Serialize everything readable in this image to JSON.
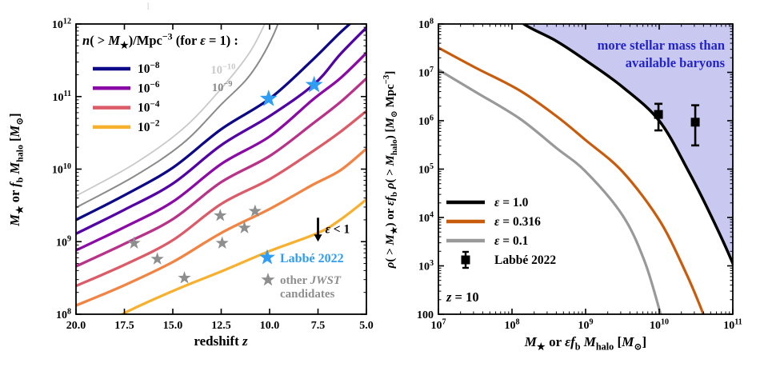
{
  "artifact": {
    "text": "I"
  },
  "chart_data": [
    {
      "type": "line",
      "id": "halo-mass-vs-redshift",
      "xlabel_rich": [
        {
          "t": "redshift "
        },
        {
          "t": "z",
          "i": 1
        }
      ],
      "ylabel_rich": [
        {
          "t": "M",
          "i": 1
        },
        {
          "t": "★",
          "s": "sub"
        },
        {
          "t": " or "
        },
        {
          "t": "f",
          "i": 1
        },
        {
          "t": "b",
          "s": "sub"
        },
        {
          "t": " "
        },
        {
          "t": "M",
          "i": 1
        },
        {
          "t": "halo",
          "s": "sub"
        },
        {
          "t": " ["
        },
        {
          "t": "M",
          "i": 1
        },
        {
          "t": "⊙",
          "s": "sub"
        },
        {
          "t": "]"
        }
      ],
      "xlim": [
        20,
        5
      ],
      "ylog_lim": [
        8,
        12
      ],
      "x_ticks": [
        {
          "v": 20,
          "label": "20.0"
        },
        {
          "v": 17.5,
          "label": "17.5"
        },
        {
          "v": 15,
          "label": "15.0"
        },
        {
          "v": 12.5,
          "label": "12.5"
        },
        {
          "v": 10,
          "label": "10.0"
        },
        {
          "v": 7.5,
          "label": "7.5"
        },
        {
          "v": 5,
          "label": "5.0"
        }
      ],
      "y_ticks_exp": [
        12,
        11,
        10,
        9,
        8
      ],
      "legend": {
        "title_rich": [
          {
            "t": "n",
            "i": 1
          },
          {
            "t": "( > "
          },
          {
            "t": "M",
            "i": 1
          },
          {
            "t": "★",
            "s": "sub"
          },
          {
            "t": ")/Mpc"
          },
          {
            "t": "−3",
            "s": "sup"
          },
          {
            "t": " (for "
          },
          {
            "t": "ε",
            "i": 1
          },
          {
            "t": " = 1) :"
          }
        ],
        "items": [
          {
            "exp": "−8",
            "color": "#0d0887"
          },
          {
            "exp": "−6",
            "color": "#8b0aa5"
          },
          {
            "exp": "−4",
            "color": "#db5c68"
          },
          {
            "exp": "−2",
            "color": "#f8b02f"
          }
        ]
      },
      "inplot_labels": [
        {
          "exp": "−10",
          "color": "#c9c9c9",
          "z": 12.4,
          "logM": 11.37
        },
        {
          "exp": "−9",
          "color": "#8a8a8a",
          "z": 12.45,
          "logM": 11.13
        }
      ],
      "series": [
        {
          "n": "1e-10",
          "color": "#c9c9c9",
          "width": 1.8,
          "points": [
            [
              20,
              9.63
            ],
            [
              17,
              10.07
            ],
            [
              14.5,
              10.55
            ],
            [
              12.5,
              11.11
            ],
            [
              11,
              11.62
            ],
            [
              10,
              12.15
            ],
            [
              9.6,
              12.45
            ]
          ]
        },
        {
          "n": "1e-9",
          "color": "#8a8a8a",
          "width": 2.0,
          "points": [
            [
              20,
              9.47
            ],
            [
              17,
              9.9
            ],
            [
              14.5,
              10.35
            ],
            [
              12.5,
              10.89
            ],
            [
              11,
              11.3
            ],
            [
              9.8,
              11.85
            ],
            [
              9.0,
              12.45
            ]
          ]
        },
        {
          "n": "1e-8",
          "color": "#0d0887",
          "width": 3.3,
          "points": [
            [
              20,
              9.3
            ],
            [
              17.5,
              9.64
            ],
            [
              15,
              10.02
            ],
            [
              12.5,
              10.55
            ],
            [
              10,
              10.97
            ],
            [
              7.8,
              11.5
            ],
            [
              6.36,
              11.88
            ],
            [
              5,
              12.2
            ]
          ]
        },
        {
          "n": "1e-7",
          "color": "#5302a3",
          "width": 3.3,
          "points": [
            [
              20,
              9.11
            ],
            [
              17.5,
              9.44
            ],
            [
              15,
              9.8
            ],
            [
              12.5,
              10.33
            ],
            [
              10,
              10.73
            ],
            [
              7.7,
              11.17
            ],
            [
              6.36,
              11.58
            ],
            [
              5,
              11.95
            ]
          ]
        },
        {
          "n": "1e-6",
          "color": "#8b0aa5",
          "width": 3.3,
          "points": [
            [
              20,
              8.88
            ],
            [
              17.5,
              9.2
            ],
            [
              15,
              9.55
            ],
            [
              12.5,
              10.07
            ],
            [
              10,
              10.45
            ],
            [
              7.8,
              10.95
            ],
            [
              6.36,
              11.25
            ],
            [
              5,
              11.6
            ]
          ]
        },
        {
          "n": "1e-5",
          "color": "#b83289",
          "width": 3.3,
          "points": [
            [
              20,
              8.66
            ],
            [
              17.5,
              8.97
            ],
            [
              15,
              9.31
            ],
            [
              12.5,
              9.82
            ],
            [
              10,
              10.18
            ],
            [
              7.8,
              10.62
            ],
            [
              6.36,
              10.92
            ],
            [
              5,
              11.25
            ]
          ]
        },
        {
          "n": "1e-4",
          "color": "#db5c68",
          "width": 3.3,
          "points": [
            [
              20,
              8.39
            ],
            [
              17.5,
              8.68
            ],
            [
              15,
              9.02
            ],
            [
              12.5,
              9.52
            ],
            [
              10,
              9.86
            ],
            [
              7.8,
              10.24
            ],
            [
              6.36,
              10.51
            ],
            [
              5,
              10.8
            ]
          ]
        },
        {
          "n": "1e-3",
          "color": "#f28443",
          "width": 3.3,
          "points": [
            [
              20,
              8.12
            ],
            [
              17.5,
              8.4
            ],
            [
              15,
              8.72
            ],
            [
              12.5,
              9.12
            ],
            [
              10,
              9.45
            ],
            [
              7.8,
              9.78
            ],
            [
              6.36,
              9.98
            ],
            [
              5,
              10.28
            ]
          ]
        },
        {
          "n": "1e-2",
          "color": "#f8b02f",
          "width": 3.3,
          "points": [
            [
              18.3,
              7.82
            ],
            [
              17.6,
              8.0
            ],
            [
              15,
              8.32
            ],
            [
              12.5,
              8.59
            ],
            [
              10,
              8.87
            ],
            [
              7.5,
              9.12
            ],
            [
              6.36,
              9.3
            ],
            [
              5,
              9.58
            ]
          ]
        }
      ],
      "stars_labbe": {
        "label": "Labbé 2022",
        "color": "#2e9df3",
        "points": [
          [
            10.05,
            10.97
          ],
          [
            7.7,
            11.16
          ]
        ]
      },
      "stars_other": {
        "label_line1_rich": [
          {
            "t": "other "
          },
          {
            "t": "JWST",
            "i": 1
          }
        ],
        "label_line2": "candidates",
        "color": "#8e8e8e",
        "points": [
          [
            17.0,
            8.98
          ],
          [
            15.8,
            8.76
          ],
          [
            14.4,
            8.5
          ],
          [
            12.55,
            9.36
          ],
          [
            12.45,
            8.98
          ],
          [
            11.3,
            9.19
          ],
          [
            10.75,
            9.42
          ]
        ]
      },
      "annotation": {
        "text_rich": [
          {
            "t": "ε",
            "i": 1
          },
          {
            "t": " < 1"
          }
        ],
        "z": 7.5,
        "logM_tail": 9.33,
        "logM_head": 9.0
      }
    },
    {
      "type": "line",
      "id": "density-vs-mass",
      "xlabel_rich": [
        {
          "t": "M",
          "i": 1
        },
        {
          "t": "★",
          "s": "sub"
        },
        {
          "t": " or "
        },
        {
          "t": "ε",
          "i": 1
        },
        {
          "t": "f",
          "i": 1
        },
        {
          "t": "b",
          "s": "sub"
        },
        {
          "t": " "
        },
        {
          "t": "M",
          "i": 1
        },
        {
          "t": "halo",
          "s": "sub"
        },
        {
          "t": " ["
        },
        {
          "t": "M",
          "i": 1
        },
        {
          "t": "⊙",
          "s": "sub"
        },
        {
          "t": "]"
        }
      ],
      "ylabel_rich": [
        {
          "t": "ρ",
          "i": 1
        },
        {
          "t": "( > "
        },
        {
          "t": "M",
          "i": 1
        },
        {
          "t": "★",
          "s": "sub"
        },
        {
          "t": ") or "
        },
        {
          "t": "ε",
          "i": 1
        },
        {
          "t": "f",
          "i": 1
        },
        {
          "t": "b",
          "s": "sub"
        },
        {
          "t": " "
        },
        {
          "t": "ρ",
          "i": 1
        },
        {
          "t": "( > "
        },
        {
          "t": "M",
          "i": 1
        },
        {
          "t": "halo",
          "s": "sub"
        },
        {
          "t": ") ["
        },
        {
          "t": "M",
          "i": 1
        },
        {
          "t": "⊙",
          "s": "sub"
        },
        {
          "t": " Mpc"
        },
        {
          "t": "−3",
          "s": "sup"
        },
        {
          "t": "]"
        }
      ],
      "xlog_lim": [
        7,
        11
      ],
      "ylog_lim": [
        2,
        8
      ],
      "x_ticks_exp": [
        7,
        8,
        9,
        10,
        11
      ],
      "y_ticks": [
        {
          "exp": "8"
        },
        {
          "exp": "7"
        },
        {
          "exp": "6"
        },
        {
          "exp": "5"
        },
        {
          "exp": "4"
        },
        {
          "exp": "3"
        },
        {
          "text": "100"
        }
      ],
      "series": [
        {
          "name_rich": [
            {
              "t": "ε",
              "i": 1
            },
            {
              "t": " = 1.0"
            }
          ],
          "color": "#000000",
          "width": 3.5,
          "points": [
            [
              8.0,
              8.3
            ],
            [
              8.16,
              8.0
            ],
            [
              8.6,
              7.65
            ],
            [
              9.0,
              7.25
            ],
            [
              9.5,
              6.7
            ],
            [
              10.0,
              6.0
            ],
            [
              10.4,
              4.95
            ],
            [
              10.7,
              4.05
            ],
            [
              11.0,
              3.05
            ],
            [
              11.1,
              2.6
            ]
          ]
        },
        {
          "name_rich": [
            {
              "t": "ε",
              "i": 1
            },
            {
              "t": " = 0.316"
            }
          ],
          "color": "#c85c0c",
          "width": 3.2,
          "points": [
            [
              6.95,
              7.55
            ],
            [
              7.5,
              7.1
            ],
            [
              8.1,
              6.63
            ],
            [
              8.6,
              6.1
            ],
            [
              9.0,
              5.6
            ],
            [
              9.5,
              4.95
            ],
            [
              10.0,
              3.95
            ],
            [
              10.35,
              2.9
            ],
            [
              10.6,
              2.0
            ],
            [
              10.68,
              1.6
            ]
          ]
        },
        {
          "name_rich": [
            {
              "t": "ε",
              "i": 1
            },
            {
              "t": " = 0.1"
            }
          ],
          "color": "#999999",
          "width": 3.2,
          "points": [
            [
              6.95,
              7.1
            ],
            [
              7.5,
              6.6
            ],
            [
              8.1,
              6.05
            ],
            [
              8.6,
              5.44
            ],
            [
              9.0,
              4.95
            ],
            [
              9.5,
              4.05
            ],
            [
              9.8,
              3.1
            ],
            [
              10.02,
              2.0
            ],
            [
              10.1,
              1.5
            ]
          ]
        }
      ],
      "points": {
        "label": "Labbé 2022",
        "color": "#000000",
        "data": [
          {
            "logx": 9.99,
            "logy": 6.13,
            "lo": 5.8,
            "hi": 6.35
          },
          {
            "logx": 10.49,
            "logy": 5.97,
            "lo": 5.49,
            "hi": 6.32
          }
        ]
      },
      "region": {
        "label_lines": [
          "more stellar mass than",
          "available baryons"
        ],
        "fill": "#c8c8f0",
        "text_color": "#2323cc"
      },
      "z_label_rich": [
        {
          "t": "z",
          "i": 1
        },
        {
          "t": " = 10"
        }
      ]
    }
  ]
}
